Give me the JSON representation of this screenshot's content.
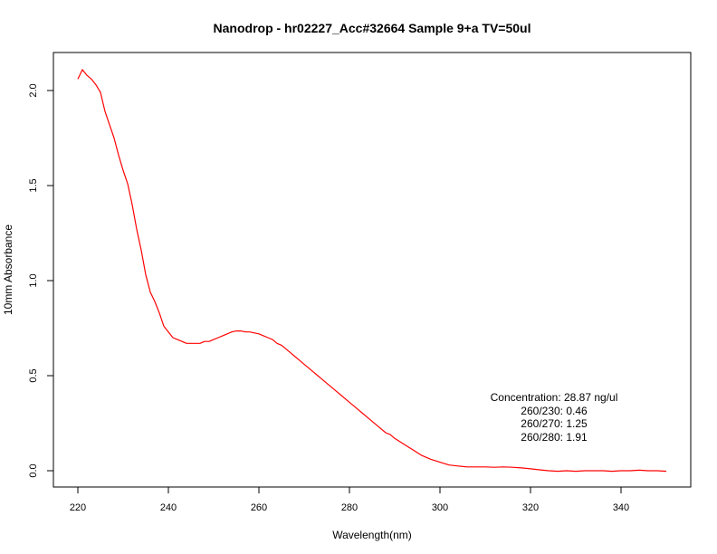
{
  "chart_data": {
    "type": "line",
    "title": "Nanodrop - hr02227_Acc#32664 Sample 9+a TV=50ul",
    "xlabel": "Wavelength(nm)",
    "ylabel": "10mm Absorbance",
    "xlim": [
      220,
      350
    ],
    "ylim": [
      0,
      2.1
    ],
    "x_ticks": [
      220,
      240,
      260,
      280,
      300,
      320,
      340
    ],
    "x_tick_labels": [
      "220",
      "240",
      "260",
      "280",
      "300",
      "320",
      "340"
    ],
    "y_ticks": [
      0.0,
      0.5,
      1.0,
      1.5,
      2.0
    ],
    "y_tick_labels": [
      "0.0",
      "0.5",
      "1.0",
      "1.5",
      "2.0"
    ],
    "grid": false,
    "series": [
      {
        "color": "#ff0000",
        "x": [
          220,
          221,
          222,
          223,
          224,
          225,
          226,
          227,
          228,
          229,
          230,
          231,
          232,
          233,
          234,
          235,
          236,
          237,
          238,
          239,
          240,
          241,
          242,
          243,
          244,
          245,
          246,
          247,
          248,
          249,
          250,
          251,
          252,
          253,
          254,
          255,
          256,
          257,
          258,
          259,
          260,
          261,
          262,
          263,
          264,
          265,
          266,
          267,
          268,
          269,
          270,
          271,
          272,
          273,
          274,
          275,
          276,
          277,
          278,
          279,
          280,
          281,
          282,
          283,
          284,
          285,
          286,
          287,
          288,
          289,
          290,
          292,
          294,
          296,
          298,
          300,
          302,
          304,
          306,
          308,
          310,
          312,
          314,
          316,
          318,
          320,
          322,
          324,
          326,
          328,
          330,
          332,
          334,
          336,
          338,
          340,
          342,
          344,
          346,
          348,
          350
        ],
        "y": [
          2.06,
          2.11,
          2.08,
          2.06,
          2.03,
          1.99,
          1.89,
          1.82,
          1.75,
          1.66,
          1.58,
          1.51,
          1.4,
          1.27,
          1.16,
          1.03,
          0.94,
          0.89,
          0.83,
          0.76,
          0.73,
          0.7,
          0.69,
          0.68,
          0.67,
          0.67,
          0.67,
          0.67,
          0.68,
          0.68,
          0.69,
          0.7,
          0.71,
          0.72,
          0.73,
          0.735,
          0.735,
          0.73,
          0.73,
          0.725,
          0.72,
          0.71,
          0.7,
          0.69,
          0.67,
          0.66,
          0.64,
          0.62,
          0.6,
          0.58,
          0.56,
          0.54,
          0.52,
          0.5,
          0.48,
          0.46,
          0.44,
          0.42,
          0.4,
          0.38,
          0.36,
          0.34,
          0.32,
          0.3,
          0.28,
          0.26,
          0.24,
          0.22,
          0.2,
          0.19,
          0.17,
          0.14,
          0.11,
          0.08,
          0.06,
          0.045,
          0.03,
          0.025,
          0.02,
          0.02,
          0.02,
          0.018,
          0.02,
          0.018,
          0.015,
          0.01,
          0.005,
          0.0,
          -0.003,
          0.0,
          -0.003,
          0.0,
          0.0,
          0.0,
          -0.003,
          0.0,
          0.0,
          0.003,
          0.0,
          0.0,
          -0.003
        ]
      }
    ],
    "annotations": [
      "Concentration: 28.87 ng/ul",
      "260/230: 0.46",
      "260/270: 1.25",
      "260/280: 1.91"
    ]
  }
}
